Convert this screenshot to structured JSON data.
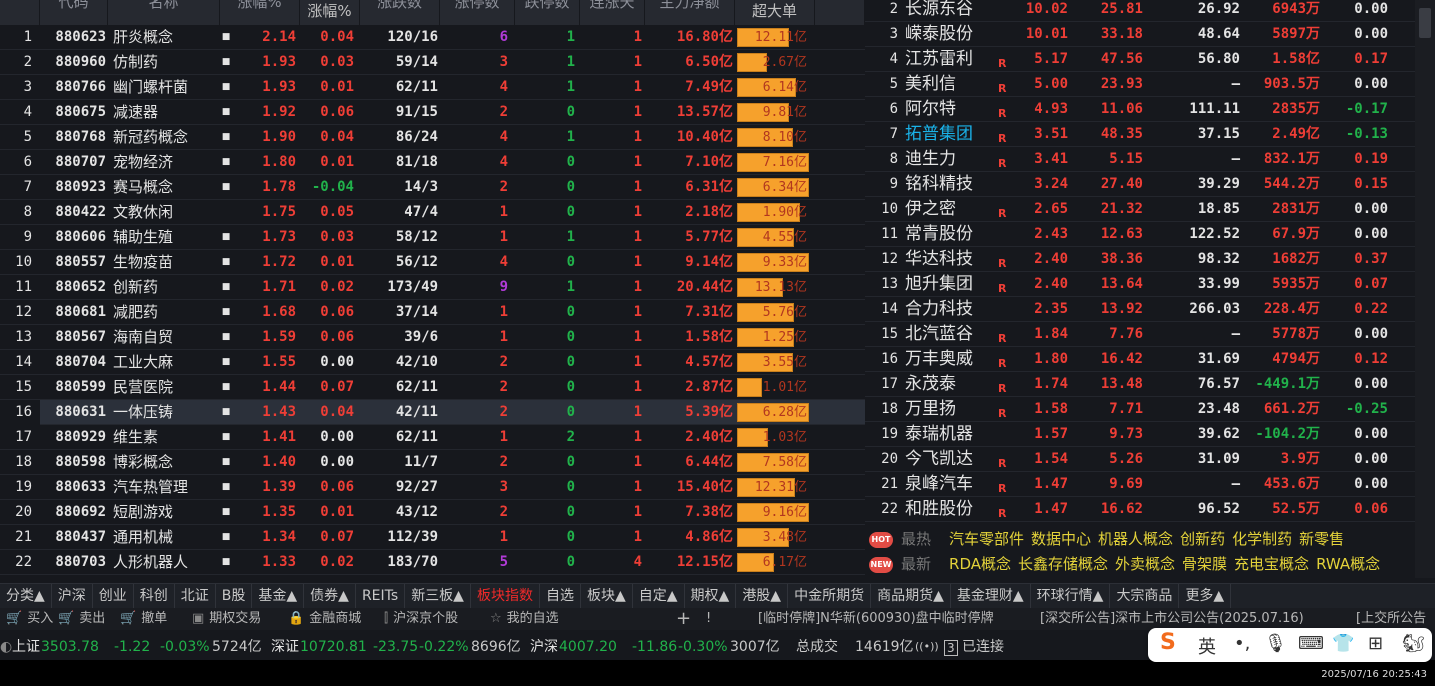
{
  "left_table": {
    "headers": [
      "代码",
      "名称",
      "涨幅%",
      "涨幅%",
      "涨跌数",
      "涨停数",
      "跌停数",
      "连涨天",
      "主力净额",
      "超大单"
    ],
    "rows": [
      {
        "n": "1",
        "code": "880623",
        "name": "肝炎概念",
        "chg": "2.14",
        "chg2": "0.04",
        "ud": "120/16",
        "zt": "6",
        "dt": "1",
        "lz": "1",
        "main": "16.80亿",
        "sup": "12.11亿"
      },
      {
        "n": "2",
        "code": "880960",
        "name": "仿制药",
        "chg": "1.93",
        "chg2": "0.03",
        "ud": "59/14",
        "zt": "3",
        "dt": "1",
        "lz": "1",
        "main": "6.50亿",
        "sup": "2.67亿"
      },
      {
        "n": "3",
        "code": "880766",
        "name": "幽门螺杆菌",
        "chg": "1.93",
        "chg2": "0.01",
        "ud": "62/11",
        "zt": "4",
        "dt": "1",
        "lz": "1",
        "main": "7.49亿",
        "sup": "6.14亿"
      },
      {
        "n": "4",
        "code": "880675",
        "name": "减速器",
        "chg": "1.92",
        "chg2": "0.06",
        "ud": "91/15",
        "zt": "2",
        "dt": "0",
        "lz": "1",
        "main": "13.57亿",
        "sup": "9.81亿"
      },
      {
        "n": "5",
        "code": "880768",
        "name": "新冠药概念",
        "chg": "1.90",
        "chg2": "0.04",
        "ud": "86/24",
        "zt": "4",
        "dt": "1",
        "lz": "1",
        "main": "10.40亿",
        "sup": "8.10亿"
      },
      {
        "n": "6",
        "code": "880707",
        "name": "宠物经济",
        "chg": "1.80",
        "chg2": "0.01",
        "ud": "81/18",
        "zt": "4",
        "dt": "0",
        "lz": "1",
        "main": "7.10亿",
        "sup": "7.16亿"
      },
      {
        "n": "7",
        "code": "880923",
        "name": "赛马概念",
        "chg": "1.78",
        "chg2": "-0.04",
        "ud": "14/3",
        "zt": "2",
        "dt": "0",
        "lz": "1",
        "main": "6.31亿",
        "sup": "6.34亿"
      },
      {
        "n": "8",
        "code": "880422",
        "name": "文教休闲",
        "chg": "1.75",
        "chg2": "0.05",
        "ud": "47/4",
        "zt": "1",
        "dt": "0",
        "lz": "1",
        "main": "2.18亿",
        "sup": "1.90亿"
      },
      {
        "n": "9",
        "code": "880606",
        "name": "辅助生殖",
        "chg": "1.73",
        "chg2": "0.03",
        "ud": "58/12",
        "zt": "1",
        "dt": "1",
        "lz": "1",
        "main": "5.77亿",
        "sup": "4.55亿"
      },
      {
        "n": "10",
        "code": "880557",
        "name": "生物疫苗",
        "chg": "1.72",
        "chg2": "0.01",
        "ud": "56/12",
        "zt": "4",
        "dt": "0",
        "lz": "1",
        "main": "9.14亿",
        "sup": "9.33亿"
      },
      {
        "n": "11",
        "code": "880652",
        "name": "创新药",
        "chg": "1.71",
        "chg2": "0.02",
        "ud": "173/49",
        "zt": "9",
        "dt": "1",
        "lz": "1",
        "main": "20.44亿",
        "sup": "13.13亿"
      },
      {
        "n": "12",
        "code": "880681",
        "name": "减肥药",
        "chg": "1.68",
        "chg2": "0.06",
        "ud": "37/14",
        "zt": "1",
        "dt": "0",
        "lz": "1",
        "main": "7.31亿",
        "sup": "5.76亿"
      },
      {
        "n": "13",
        "code": "880567",
        "name": "海南自贸",
        "chg": "1.59",
        "chg2": "0.06",
        "ud": "39/6",
        "zt": "1",
        "dt": "0",
        "lz": "1",
        "main": "1.58亿",
        "sup": "1.25亿"
      },
      {
        "n": "14",
        "code": "880704",
        "name": "工业大麻",
        "chg": "1.55",
        "chg2": "0.00",
        "ud": "42/10",
        "zt": "2",
        "dt": "0",
        "lz": "1",
        "main": "4.57亿",
        "sup": "3.55亿"
      },
      {
        "n": "15",
        "code": "880599",
        "name": "民营医院",
        "chg": "1.44",
        "chg2": "0.07",
        "ud": "62/11",
        "zt": "2",
        "dt": "0",
        "lz": "1",
        "main": "2.87亿",
        "sup": "1.01亿"
      },
      {
        "n": "16",
        "code": "880631",
        "name": "一体压铸",
        "chg": "1.43",
        "chg2": "0.04",
        "ud": "42/11",
        "zt": "2",
        "dt": "0",
        "lz": "1",
        "main": "5.39亿",
        "sup": "6.28亿"
      },
      {
        "n": "17",
        "code": "880929",
        "name": "维生素",
        "chg": "1.41",
        "chg2": "0.00",
        "ud": "62/11",
        "zt": "1",
        "dt": "2",
        "lz": "1",
        "main": "2.40亿",
        "sup": "1.03亿"
      },
      {
        "n": "18",
        "code": "880598",
        "name": "博彩概念",
        "chg": "1.40",
        "chg2": "0.00",
        "ud": "11/7",
        "zt": "2",
        "dt": "0",
        "lz": "1",
        "main": "6.44亿",
        "sup": "7.58亿"
      },
      {
        "n": "19",
        "code": "880633",
        "name": "汽车热管理",
        "chg": "1.39",
        "chg2": "0.06",
        "ud": "92/27",
        "zt": "3",
        "dt": "0",
        "lz": "1",
        "main": "15.40亿",
        "sup": "12.31亿"
      },
      {
        "n": "20",
        "code": "880692",
        "name": "短剧游戏",
        "chg": "1.35",
        "chg2": "0.01",
        "ud": "43/12",
        "zt": "2",
        "dt": "0",
        "lz": "1",
        "main": "7.38亿",
        "sup": "9.16亿"
      },
      {
        "n": "21",
        "code": "880437",
        "name": "通用机械",
        "chg": "1.34",
        "chg2": "0.07",
        "ud": "112/39",
        "zt": "1",
        "dt": "0",
        "lz": "1",
        "main": "4.86亿",
        "sup": "3.48亿"
      },
      {
        "n": "22",
        "code": "880703",
        "name": "人形机器人",
        "chg": "1.33",
        "chg2": "0.02",
        "ud": "183/70",
        "zt": "5",
        "dt": "0",
        "lz": "4",
        "main": "12.15亿",
        "sup": "6.17亿"
      }
    ],
    "selected_row": "16"
  },
  "right_table": {
    "rows": [
      {
        "n": "2",
        "name": "长源东谷",
        "r": "",
        "chg": "10.02",
        "price": "25.81",
        "pe": "26.92",
        "amt": "6943万",
        "speed": "0.00"
      },
      {
        "n": "3",
        "name": "嵘泰股份",
        "r": "",
        "chg": "10.01",
        "price": "33.18",
        "pe": "48.64",
        "amt": "5897万",
        "speed": "0.00"
      },
      {
        "n": "4",
        "name": "江苏雷利",
        "r": "R",
        "chg": "5.17",
        "price": "47.56",
        "pe": "56.80",
        "amt": "1.58亿",
        "speed": "0.17"
      },
      {
        "n": "5",
        "name": "美利信",
        "r": "R",
        "chg": "5.00",
        "price": "23.93",
        "pe": "–",
        "amt": "903.5万",
        "speed": "0.00"
      },
      {
        "n": "6",
        "name": "阿尔特",
        "r": "R",
        "chg": "4.93",
        "price": "11.06",
        "pe": "111.11",
        "amt": "2835万",
        "speed": "-0.17"
      },
      {
        "n": "7",
        "name": "拓普集团",
        "r": "R",
        "chg": "3.51",
        "price": "48.35",
        "pe": "37.15",
        "amt": "2.49亿",
        "speed": "-0.13",
        "highlight": true
      },
      {
        "n": "8",
        "name": "迪生力",
        "r": "R",
        "chg": "3.41",
        "price": "5.15",
        "pe": "–",
        "amt": "832.1万",
        "speed": "0.19"
      },
      {
        "n": "9",
        "name": "铭科精技",
        "r": "",
        "chg": "3.24",
        "price": "27.40",
        "pe": "39.29",
        "amt": "544.2万",
        "speed": "0.15"
      },
      {
        "n": "10",
        "name": "伊之密",
        "r": "R",
        "chg": "2.65",
        "price": "21.32",
        "pe": "18.85",
        "amt": "2831万",
        "speed": "0.00"
      },
      {
        "n": "11",
        "name": "常青股份",
        "r": "",
        "chg": "2.43",
        "price": "12.63",
        "pe": "122.52",
        "amt": "67.9万",
        "speed": "0.00"
      },
      {
        "n": "12",
        "name": "华达科技",
        "r": "R",
        "chg": "2.40",
        "price": "38.36",
        "pe": "98.32",
        "amt": "1682万",
        "speed": "0.37"
      },
      {
        "n": "13",
        "name": "旭升集团",
        "r": "R",
        "chg": "2.40",
        "price": "13.64",
        "pe": "33.99",
        "amt": "5935万",
        "speed": "0.07"
      },
      {
        "n": "14",
        "name": "合力科技",
        "r": "",
        "chg": "2.35",
        "price": "13.92",
        "pe": "266.03",
        "amt": "228.4万",
        "speed": "0.22"
      },
      {
        "n": "15",
        "name": "北汽蓝谷",
        "r": "R",
        "chg": "1.84",
        "price": "7.76",
        "pe": "–",
        "amt": "5778万",
        "speed": "0.00"
      },
      {
        "n": "16",
        "name": "万丰奥威",
        "r": "R",
        "chg": "1.80",
        "price": "16.42",
        "pe": "31.69",
        "amt": "4794万",
        "speed": "0.12"
      },
      {
        "n": "17",
        "name": "永茂泰",
        "r": "R",
        "chg": "1.74",
        "price": "13.48",
        "pe": "76.57",
        "amt": "-449.1万",
        "speed": "0.00"
      },
      {
        "n": "18",
        "name": "万里扬",
        "r": "R",
        "chg": "1.58",
        "price": "7.71",
        "pe": "23.48",
        "amt": "661.2万",
        "speed": "-0.25"
      },
      {
        "n": "19",
        "name": "泰瑞机器",
        "r": "",
        "chg": "1.57",
        "price": "9.73",
        "pe": "39.62",
        "amt": "-104.2万",
        "speed": "0.00"
      },
      {
        "n": "20",
        "name": "今飞凯达",
        "r": "R",
        "chg": "1.54",
        "price": "5.26",
        "pe": "31.09",
        "amt": "3.9万",
        "speed": "0.00"
      },
      {
        "n": "21",
        "name": "泉峰汽车",
        "r": "R",
        "chg": "1.47",
        "price": "9.69",
        "pe": "–",
        "amt": "453.6万",
        "speed": "0.00"
      },
      {
        "n": "22",
        "name": "和胜股份",
        "r": "R",
        "chg": "1.47",
        "price": "16.62",
        "pe": "96.52",
        "amt": "52.5万",
        "speed": "0.06"
      }
    ]
  },
  "hot": {
    "hot_badge": "HOT",
    "hot_label": "最热",
    "hot_items": [
      "汽车零部件",
      "数据中心",
      "机器人概念",
      "创新药",
      "化学制药",
      "新零售"
    ],
    "new_badge": "NEW",
    "new_label": "最新",
    "new_items": [
      "RDA概念",
      "长鑫存储概念",
      "外卖概念",
      "骨架膜",
      "充电宝概念",
      "RWA概念"
    ]
  },
  "tabs": {
    "items": [
      "分类▲",
      "沪深",
      "创业",
      "科创",
      "北证",
      "B股",
      "基金▲",
      "债券▲",
      "REITs",
      "新三板▲",
      "板块指数",
      "自选",
      "板块▲",
      "自定▲",
      "期权▲",
      "港股▲",
      "中金所期货",
      "商品期货▲",
      "基金理财▲",
      "环球行情▲",
      "大宗商品",
      "更多▲"
    ],
    "active": "板块指数"
  },
  "toolbar": {
    "buttons": [
      {
        "icon": "cart-icon",
        "label": "买入"
      },
      {
        "icon": "cart-icon",
        "label": "卖出"
      },
      {
        "icon": "cart-icon",
        "label": "撤单"
      },
      {
        "icon": "chart-icon",
        "label": "期权交易"
      },
      {
        "icon": "bag-icon",
        "label": "金融商城"
      },
      {
        "icon": "candle-icon",
        "label": "沪深京个股"
      },
      {
        "icon": "star-icon",
        "label": "我的自选"
      }
    ],
    "plus": "+",
    "bang": "!",
    "news": [
      "[临时停牌]N华新(600930)盘中临时停牌",
      "[深交所公告]深市上市公司公告(2025.07.16)",
      "[上交所公告"
    ]
  },
  "status": {
    "indices": [
      {
        "name": "上证",
        "value": "3503.78",
        "chg": "-1.22",
        "pct": "-0.03%",
        "vol": "5724亿"
      },
      {
        "name": "深证",
        "value": "10720.81",
        "chg": "-23.75",
        "pct": "-0.22%",
        "vol": "8696亿"
      },
      {
        "name": "沪深",
        "value": "4007.20",
        "chg": "-11.86",
        "pct": "-0.30%",
        "vol": "3007亿"
      }
    ],
    "total_label": "总成交",
    "total": "14619亿",
    "conn_count": "3",
    "conn": "已连接"
  },
  "ime": {
    "logo": "S",
    "lang": "英"
  },
  "clock": "2025/07/16 20:25:43",
  "colors": {
    "up": "#ef3e36",
    "down": "#21b24b",
    "bar": "#f6a12c",
    "active_tab": "#f02a2a",
    "keyword": "#e3d23a"
  }
}
